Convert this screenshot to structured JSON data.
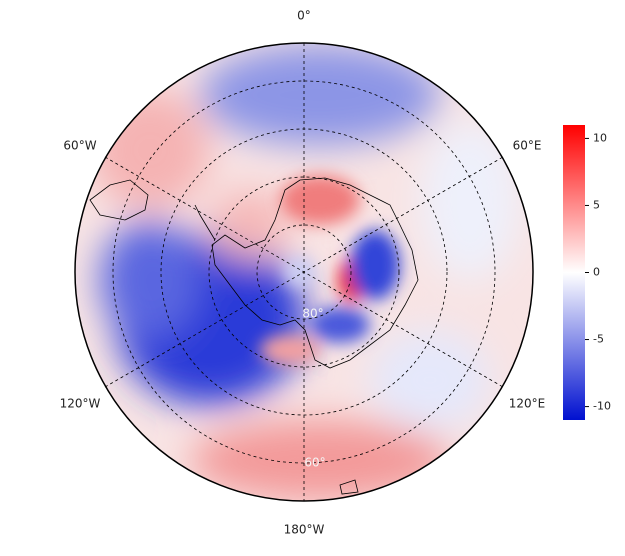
{
  "map": {
    "longitude_labels": [
      "0°",
      "60°E",
      "120°E",
      "180°W",
      "120°W",
      "60°W"
    ],
    "latitude_labels": [
      "80°",
      "60°"
    ]
  },
  "colorbar": {
    "ylim": [
      -11,
      11
    ],
    "ticks": [
      10,
      5,
      0,
      -5,
      -10
    ]
  }
}
